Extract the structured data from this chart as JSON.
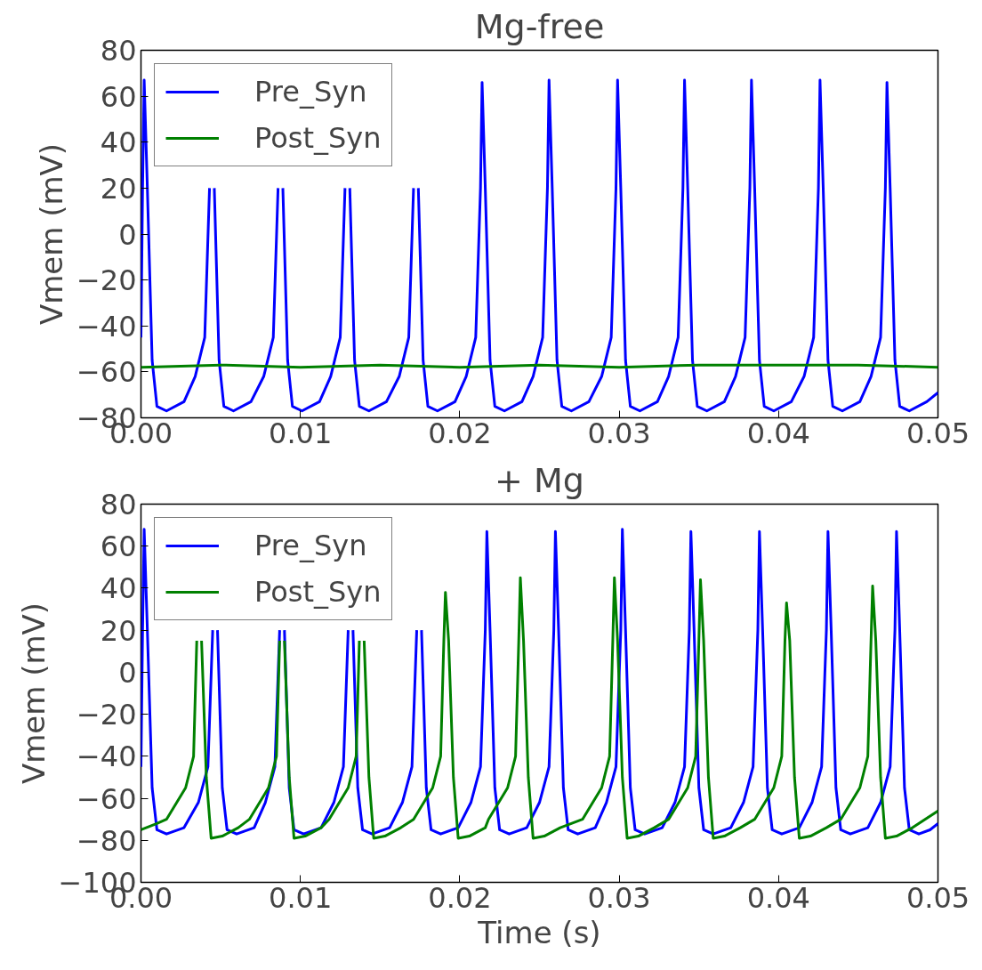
{
  "chart_data": [
    {
      "type": "line",
      "title": "Mg-free",
      "ylabel": "Vmem (mV)",
      "legend": "top left",
      "xlim": [
        0,
        0.05
      ],
      "ylim": [
        -80,
        80
      ],
      "xticks": [
        {
          "value": 0,
          "label": "0.00"
        },
        {
          "value": 0.01,
          "label": "0.01"
        },
        {
          "value": 0.02,
          "label": "0.02"
        },
        {
          "value": 0.03,
          "label": "0.03"
        },
        {
          "value": 0.04,
          "label": "0.04"
        },
        {
          "value": 0.05,
          "label": "0.05"
        }
      ],
      "yticks": [
        -80,
        -60,
        -40,
        -20,
        0,
        20,
        40,
        60,
        80
      ],
      "series": [
        {
          "name": "Pre_Syn",
          "color": "#0000ff",
          "x": [
            0,
            0.0001,
            0.0002,
            0.0004,
            0.0007,
            0.001,
            0.0016,
            0.0027,
            0.0034,
            0.004,
            0.0043,
            0.0044,
            0.0046,
            0.0049,
            0.0052,
            0.0058,
            0.0069,
            0.0077,
            0.0083,
            0.0086,
            0.0087,
            0.0089,
            0.0092,
            0.0095,
            0.0101,
            0.0112,
            0.0119,
            0.0125,
            0.0128,
            0.0129,
            0.0131,
            0.0134,
            0.0137,
            0.0143,
            0.0154,
            0.0162,
            0.0168,
            0.0171,
            0.0172,
            0.0174,
            0.0177,
            0.018,
            0.0186,
            0.0197,
            0.0204,
            0.021,
            0.0213,
            0.0214,
            0.0216,
            0.0219,
            0.0222,
            0.0228,
            0.0239,
            0.0246,
            0.0252,
            0.0255,
            0.0256,
            0.0258,
            0.0261,
            0.0264,
            0.027,
            0.0281,
            0.0289,
            0.0295,
            0.0298,
            0.0299,
            0.0301,
            0.0304,
            0.0307,
            0.0313,
            0.0324,
            0.0331,
            0.0337,
            0.034,
            0.0341,
            0.0343,
            0.0346,
            0.0349,
            0.0355,
            0.0366,
            0.0373,
            0.0379,
            0.0382,
            0.0383,
            0.0385,
            0.0388,
            0.0391,
            0.0397,
            0.0408,
            0.0416,
            0.0422,
            0.0425,
            0.0426,
            0.0428,
            0.0431,
            0.0434,
            0.044,
            0.0451,
            0.0458,
            0.0464,
            0.0467,
            0.0468,
            0.047,
            0.0473,
            0.0476,
            0.0482,
            0.0493,
            0.05
          ],
          "values": [
            -45,
            20,
            67,
            20,
            -55,
            -75,
            -77,
            -73,
            -62,
            -45,
            20,
            null,
            20,
            -55,
            -75,
            -77,
            -73,
            -62,
            -45,
            20,
            null,
            20,
            -55,
            -75,
            -77,
            -73,
            -62,
            -45,
            20,
            null,
            20,
            -55,
            -75,
            -77,
            -73,
            -62,
            -45,
            20,
            null,
            20,
            -55,
            -75,
            -77,
            -73,
            -62,
            -45,
            20,
            66,
            20,
            -55,
            -75,
            -77,
            -73,
            -62,
            -45,
            20,
            67,
            20,
            -55,
            -75,
            -77,
            -73,
            -62,
            -45,
            20,
            67,
            20,
            -55,
            -75,
            -77,
            -73,
            -62,
            -45,
            20,
            67,
            20,
            -55,
            -75,
            -77,
            -73,
            -62,
            -45,
            20,
            67,
            20,
            -55,
            -75,
            -77,
            -73,
            -62,
            -45,
            20,
            67,
            20,
            -55,
            -75,
            -77,
            -73,
            -62,
            -45,
            20,
            66,
            20,
            -55,
            -75,
            -77,
            -73,
            -69
          ]
        },
        {
          "name": "Post_Syn",
          "color": "#008000",
          "x": [
            0,
            0.005,
            0.01,
            0.015,
            0.02,
            0.025,
            0.03,
            0.035,
            0.04,
            0.045,
            0.05
          ],
          "values": [
            -58,
            -57,
            -58,
            -57,
            -58,
            -57,
            -58,
            -57,
            -57,
            -57,
            -58
          ]
        }
      ]
    },
    {
      "type": "line",
      "title": "+ Mg",
      "xlabel": "Time (s)",
      "ylabel": "Vmem (mV)",
      "legend": "top left",
      "xlim": [
        0,
        0.05
      ],
      "ylim": [
        -100,
        80
      ],
      "xticks": [
        {
          "value": 0,
          "label": "0.00"
        },
        {
          "value": 0.01,
          "label": "0.01"
        },
        {
          "value": 0.02,
          "label": "0.02"
        },
        {
          "value": 0.03,
          "label": "0.03"
        },
        {
          "value": 0.04,
          "label": "0.04"
        },
        {
          "value": 0.05,
          "label": "0.05"
        }
      ],
      "yticks": [
        -100,
        -80,
        -60,
        -40,
        -20,
        0,
        20,
        40,
        60,
        80
      ],
      "series": [
        {
          "name": "Pre_Syn",
          "color": "#0000ff",
          "x": [
            0,
            0.0001,
            0.0002,
            0.0004,
            0.0007,
            0.001,
            0.0016,
            0.0027,
            0.0036,
            0.0042,
            0.0045,
            0.0046,
            0.0048,
            0.0051,
            0.0054,
            0.006,
            0.0071,
            0.0078,
            0.0084,
            0.0087,
            0.0088,
            0.009,
            0.0093,
            0.0096,
            0.0102,
            0.0113,
            0.0121,
            0.0127,
            0.013,
            0.0131,
            0.0133,
            0.0136,
            0.0139,
            0.0145,
            0.0156,
            0.0164,
            0.017,
            0.0173,
            0.0174,
            0.0176,
            0.0179,
            0.0182,
            0.0188,
            0.0199,
            0.0207,
            0.0213,
            0.0216,
            0.0217,
            0.0219,
            0.0222,
            0.0225,
            0.0231,
            0.0242,
            0.025,
            0.0256,
            0.0259,
            0.026,
            0.0262,
            0.0265,
            0.0268,
            0.0274,
            0.0285,
            0.0292,
            0.0298,
            0.0301,
            0.0302,
            0.0304,
            0.0307,
            0.031,
            0.0316,
            0.0327,
            0.0335,
            0.0341,
            0.0344,
            0.0345,
            0.0347,
            0.035,
            0.0353,
            0.0359,
            0.037,
            0.0378,
            0.0384,
            0.0387,
            0.0388,
            0.039,
            0.0393,
            0.0396,
            0.0402,
            0.0413,
            0.0421,
            0.0427,
            0.043,
            0.0431,
            0.0433,
            0.0436,
            0.0439,
            0.0445,
            0.0456,
            0.0464,
            0.047,
            0.0473,
            0.0474,
            0.0476,
            0.0479,
            0.0482,
            0.0488,
            0.0495,
            0.05
          ],
          "values": [
            -45,
            20,
            68,
            20,
            -55,
            -75,
            -77,
            -74,
            -62,
            -45,
            20,
            null,
            20,
            -55,
            -75,
            -77,
            -74,
            -62,
            -45,
            20,
            null,
            20,
            -55,
            -75,
            -77,
            -74,
            -62,
            -45,
            20,
            null,
            20,
            -55,
            -75,
            -77,
            -74,
            -62,
            -45,
            20,
            null,
            20,
            -55,
            -75,
            -77,
            -74,
            -62,
            -45,
            20,
            67,
            20,
            -55,
            -75,
            -77,
            -74,
            -62,
            -45,
            20,
            67,
            20,
            -55,
            -75,
            -77,
            -74,
            -62,
            -45,
            20,
            68,
            20,
            -55,
            -75,
            -77,
            -74,
            -62,
            -45,
            20,
            67,
            20,
            -55,
            -75,
            -77,
            -74,
            -62,
            -45,
            20,
            67,
            20,
            -55,
            -75,
            -77,
            -74,
            -62,
            -45,
            20,
            67,
            20,
            -55,
            -75,
            -77,
            -74,
            -62,
            -45,
            20,
            67,
            20,
            -55,
            -75,
            -77,
            -75,
            -72
          ]
        },
        {
          "name": "Post_Syn",
          "color": "#008000",
          "x": [
            0,
            0.001,
            0.0016,
            0.0028,
            0.0033,
            0.0035,
            0.0036,
            0.0038,
            0.0041,
            0.0044,
            0.0051,
            0.0061,
            0.0068,
            0.008,
            0.0085,
            0.0087,
            0.0088,
            0.009,
            0.0093,
            0.0096,
            0.0103,
            0.0113,
            0.0118,
            0.013,
            0.0135,
            0.0137,
            0.0138,
            0.014,
            0.0143,
            0.0146,
            0.0153,
            0.0163,
            0.0171,
            0.0183,
            0.0188,
            0.019,
            0.0191,
            0.0193,
            0.0196,
            0.0199,
            0.0206,
            0.0216,
            0.0218,
            0.023,
            0.0235,
            0.0237,
            0.0238,
            0.024,
            0.0243,
            0.0246,
            0.0253,
            0.0263,
            0.0277,
            0.0289,
            0.0294,
            0.0296,
            0.0297,
            0.0299,
            0.0302,
            0.0305,
            0.0312,
            0.0322,
            0.0331,
            0.0343,
            0.0348,
            0.035,
            0.0351,
            0.0353,
            0.0356,
            0.0359,
            0.0366,
            0.0376,
            0.0385,
            0.0397,
            0.0402,
            0.0404,
            0.0405,
            0.0407,
            0.041,
            0.0413,
            0.042,
            0.043,
            0.0439,
            0.0451,
            0.0456,
            0.0458,
            0.0459,
            0.0461,
            0.0464,
            0.0467,
            0.0474,
            0.0484,
            0.05
          ],
          "values": [
            -75,
            -72,
            -70,
            -55,
            -40,
            15,
            null,
            15,
            -50,
            -79,
            -78,
            -74,
            -70,
            -55,
            -40,
            15,
            null,
            15,
            -50,
            -79,
            -78,
            -74,
            -70,
            -55,
            -40,
            15,
            null,
            15,
            -50,
            -79,
            -78,
            -74,
            -70,
            -55,
            -40,
            15,
            38,
            15,
            -50,
            -79,
            -78,
            -74,
            -70,
            -55,
            -40,
            15,
            45,
            15,
            -50,
            -79,
            -78,
            -74,
            -70,
            -55,
            -40,
            15,
            45,
            15,
            -50,
            -79,
            -78,
            -74,
            -70,
            -55,
            -40,
            15,
            44,
            15,
            -50,
            -79,
            -78,
            -74,
            -70,
            -55,
            -40,
            15,
            33,
            15,
            -50,
            -79,
            -78,
            -74,
            -70,
            -55,
            -40,
            15,
            41,
            15,
            -50,
            -79,
            -78,
            -74,
            -66
          ]
        }
      ]
    }
  ]
}
